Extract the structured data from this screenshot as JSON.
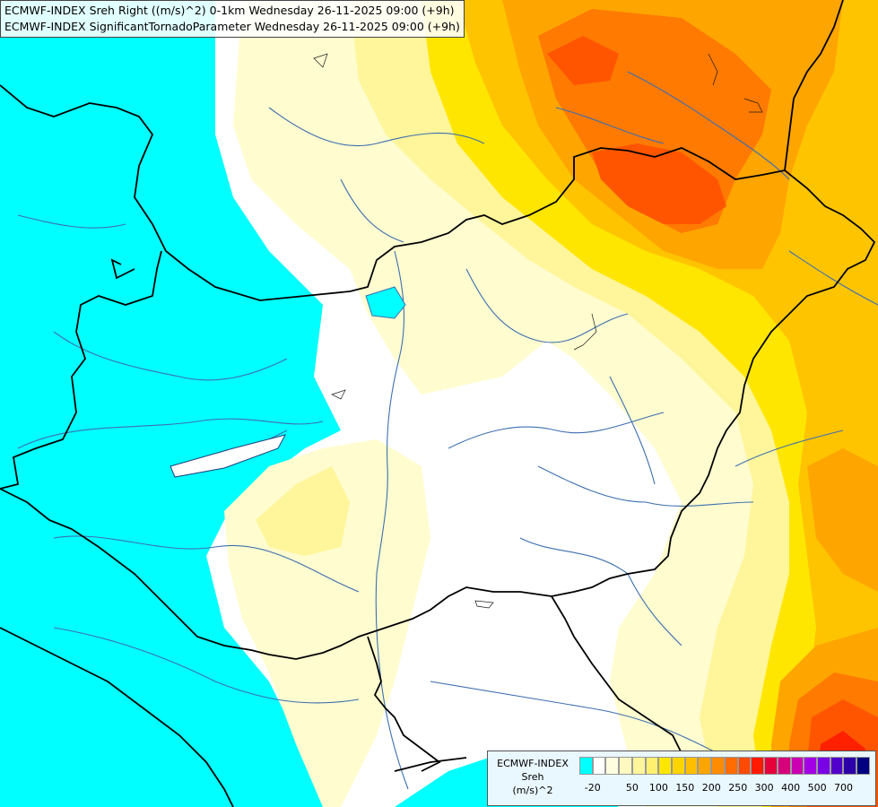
{
  "header": {
    "line1": "ECMWF-INDEX Sreh Right ((m/s)^2) 0-1km Wednesday 26-11-2025 09:00 (+9h)",
    "line2": "ECMWF-INDEX SignificantTornadoParameter Wednesday 26-11-2025 09:00 (+9h)"
  },
  "legend": {
    "source": "ECMWF-INDEX",
    "variable": "Sreh",
    "unit": "(m/s)^2",
    "colors": [
      "#00ffff",
      "#ffffff",
      "#fffde0",
      "#fff9c0",
      "#fff59a",
      "#fff070",
      "#ffe600",
      "#ffd500",
      "#ffbf00",
      "#ffa500",
      "#ff8c00",
      "#ff6c00",
      "#ff4a00",
      "#ff1a00",
      "#e6003c",
      "#d6007a",
      "#cc00b3",
      "#a300e6",
      "#7a00e6",
      "#5200cc",
      "#2e00a8",
      "#000080"
    ],
    "tick_labels": [
      "-20",
      "50",
      "100",
      "150",
      "200",
      "250",
      "300",
      "400",
      "500",
      "700"
    ]
  },
  "map": {
    "field": "storm relative helicity 0-1km",
    "colors": {
      "low": "#00ffff",
      "zero": "#ffffff",
      "pale": "#fffccf",
      "light_yellow": "#fff59a",
      "yellow": "#ffe600",
      "amber": "#ffc400",
      "orange": "#ffa500",
      "dark_orange": "#ff7a00",
      "red_orange": "#ff5500",
      "red": "#ff2000",
      "border": "#000000",
      "river": "#3d6fb0"
    }
  }
}
